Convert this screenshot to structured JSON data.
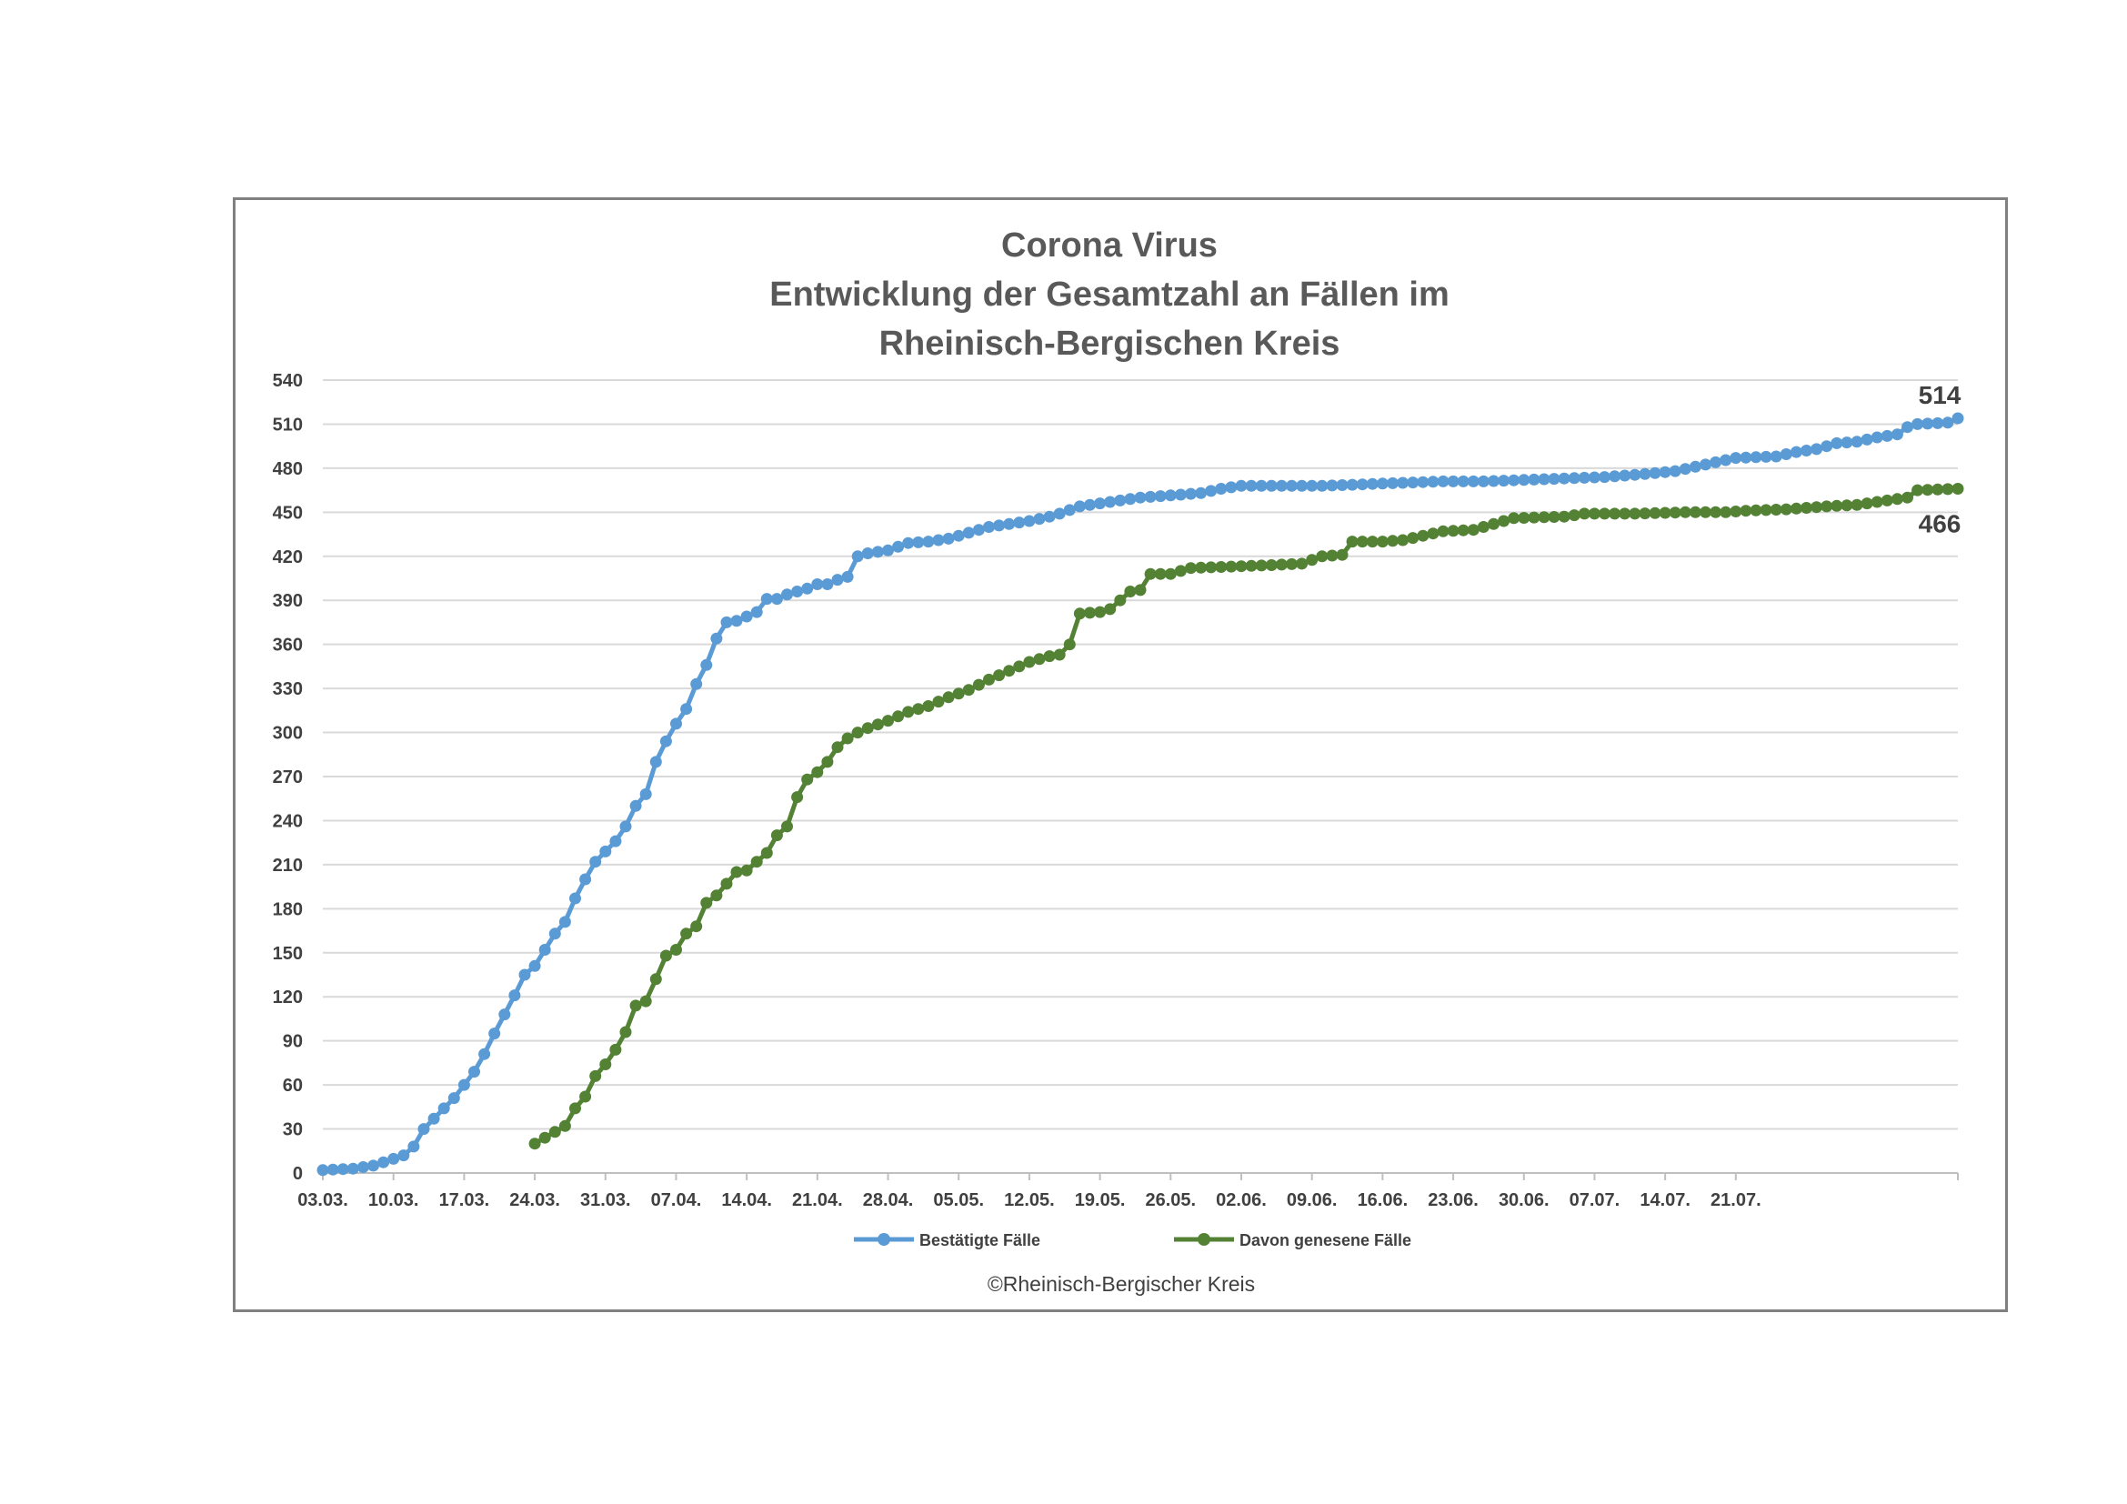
{
  "colors": {
    "series_confirmed": "#5b9bd5",
    "series_recovered": "#548235",
    "gridline": "#d9d9d9",
    "axis": "#bfbfbf",
    "frame": "#808080",
    "title": "#595959",
    "text": "#404040"
  },
  "chart_data": {
    "type": "line",
    "title_lines": [
      "Corona Virus",
      "Entwicklung der Gesamtzahl an Fällen im",
      "Rheinisch-Bergischen Kreis"
    ],
    "xlabel": "",
    "ylabel": "",
    "ylim": [
      0,
      540
    ],
    "y_ticks": [
      "0",
      "30",
      "60",
      "90",
      "120",
      "150",
      "180",
      "210",
      "240",
      "270",
      "300",
      "330",
      "360",
      "390",
      "420",
      "450",
      "480",
      "510",
      "540"
    ],
    "x_start": "03.03.",
    "x_end": "28.07.",
    "x_ticks": [
      "03.03.",
      "10.03.",
      "17.03.",
      "24.03.",
      "31.03.",
      "07.04.",
      "14.04.",
      "21.04.",
      "28.04.",
      "05.05.",
      "12.05.",
      "19.05.",
      "26.05.",
      "02.06.",
      "09.06.",
      "16.06.",
      "23.06.",
      "30.06.",
      "07.07.",
      "14.07.",
      "21.07."
    ],
    "grid": true,
    "legend_position": "bottom",
    "series": [
      {
        "name": "Bestätigte Fälle",
        "start": "03.03.",
        "end_label": "514",
        "keypoints": [
          [
            0,
            2
          ],
          [
            3,
            3
          ],
          [
            5,
            5
          ],
          [
            8,
            12
          ],
          [
            9,
            18
          ],
          [
            10,
            30
          ],
          [
            11,
            37
          ],
          [
            12,
            44
          ],
          [
            13,
            51
          ],
          [
            14,
            60
          ],
          [
            15,
            69
          ],
          [
            16,
            81
          ],
          [
            17,
            95
          ],
          [
            18,
            108
          ],
          [
            19,
            121
          ],
          [
            20,
            135
          ],
          [
            21,
            141
          ],
          [
            22,
            152
          ],
          [
            23,
            163
          ],
          [
            24,
            171
          ],
          [
            25,
            187
          ],
          [
            26,
            200
          ],
          [
            27,
            212
          ],
          [
            28,
            219
          ],
          [
            29,
            226
          ],
          [
            30,
            236
          ],
          [
            31,
            250
          ],
          [
            32,
            258
          ],
          [
            33,
            280
          ],
          [
            34,
            294
          ],
          [
            35,
            306
          ],
          [
            36,
            316
          ],
          [
            37,
            333
          ],
          [
            38,
            346
          ],
          [
            39,
            364
          ],
          [
            40,
            375
          ],
          [
            41,
            376
          ],
          [
            42,
            379
          ],
          [
            43,
            382
          ],
          [
            44,
            391
          ],
          [
            45,
            391
          ],
          [
            46,
            394
          ],
          [
            47,
            396
          ],
          [
            48,
            398
          ],
          [
            49,
            401
          ],
          [
            50,
            401
          ],
          [
            51,
            404
          ],
          [
            52,
            406
          ],
          [
            53,
            420
          ],
          [
            54,
            422
          ],
          [
            56,
            424
          ],
          [
            58,
            429
          ],
          [
            60,
            430
          ],
          [
            62,
            432
          ],
          [
            64,
            436
          ],
          [
            66,
            440
          ],
          [
            68,
            442
          ],
          [
            70,
            444
          ],
          [
            72,
            447
          ],
          [
            73,
            449
          ],
          [
            75,
            454
          ],
          [
            77,
            456
          ],
          [
            79,
            458
          ],
          [
            81,
            460
          ],
          [
            83,
            461
          ],
          [
            85,
            462
          ],
          [
            87,
            463
          ],
          [
            89,
            466
          ],
          [
            91,
            468
          ],
          [
            95,
            468
          ],
          [
            99,
            468
          ],
          [
            103,
            469
          ],
          [
            107,
            470
          ],
          [
            111,
            471
          ],
          [
            115,
            471
          ],
          [
            119,
            472
          ],
          [
            123,
            473
          ],
          [
            127,
            474
          ],
          [
            131,
            476
          ],
          [
            134,
            478
          ],
          [
            136,
            481
          ],
          [
            138,
            484
          ],
          [
            140,
            487
          ],
          [
            144,
            488
          ],
          [
            146,
            491
          ],
          [
            148,
            493
          ],
          [
            150,
            497
          ],
          [
            152,
            498
          ],
          [
            154,
            501
          ],
          [
            156,
            503
          ],
          [
            157,
            508
          ],
          [
            158,
            510
          ],
          [
            161,
            511
          ],
          [
            162,
            514
          ]
        ]
      },
      {
        "name": "Davon genesene Fälle",
        "start": "24.03.",
        "end_label": "466",
        "keypoints": [
          [
            21,
            20
          ],
          [
            22,
            24
          ],
          [
            23,
            28
          ],
          [
            24,
            32
          ],
          [
            25,
            44
          ],
          [
            26,
            52
          ],
          [
            27,
            66
          ],
          [
            28,
            74
          ],
          [
            29,
            84
          ],
          [
            30,
            96
          ],
          [
            31,
            114
          ],
          [
            32,
            117
          ],
          [
            33,
            132
          ],
          [
            34,
            148
          ],
          [
            35,
            152
          ],
          [
            36,
            163
          ],
          [
            37,
            168
          ],
          [
            38,
            184
          ],
          [
            39,
            189
          ],
          [
            40,
            197
          ],
          [
            41,
            205
          ],
          [
            42,
            206
          ],
          [
            43,
            212
          ],
          [
            44,
            218
          ],
          [
            45,
            230
          ],
          [
            46,
            236
          ],
          [
            47,
            256
          ],
          [
            48,
            268
          ],
          [
            49,
            273
          ],
          [
            50,
            280
          ],
          [
            51,
            290
          ],
          [
            52,
            296
          ],
          [
            53,
            300
          ],
          [
            54,
            303
          ],
          [
            56,
            308
          ],
          [
            58,
            314
          ],
          [
            60,
            318
          ],
          [
            62,
            324
          ],
          [
            64,
            329
          ],
          [
            66,
            336
          ],
          [
            68,
            342
          ],
          [
            70,
            348
          ],
          [
            71,
            350
          ],
          [
            72,
            352
          ],
          [
            73,
            353
          ],
          [
            74,
            360
          ],
          [
            75,
            381
          ],
          [
            77,
            382
          ],
          [
            78,
            384
          ],
          [
            79,
            390
          ],
          [
            80,
            396
          ],
          [
            81,
            397
          ],
          [
            82,
            408
          ],
          [
            84,
            408
          ],
          [
            86,
            412
          ],
          [
            90,
            413
          ],
          [
            94,
            414
          ],
          [
            97,
            415
          ],
          [
            99,
            420
          ],
          [
            101,
            421
          ],
          [
            102,
            430
          ],
          [
            105,
            430
          ],
          [
            107,
            431
          ],
          [
            109,
            434
          ],
          [
            111,
            437
          ],
          [
            114,
            438
          ],
          [
            116,
            442
          ],
          [
            118,
            446
          ],
          [
            123,
            447
          ],
          [
            125,
            449
          ],
          [
            130,
            449
          ],
          [
            135,
            450
          ],
          [
            139,
            450
          ],
          [
            141,
            451
          ],
          [
            145,
            452
          ],
          [
            149,
            454
          ],
          [
            152,
            455
          ],
          [
            155,
            458
          ],
          [
            157,
            460
          ],
          [
            158,
            465
          ],
          [
            162,
            466
          ]
        ]
      }
    ],
    "annotations": [
      "514",
      "466"
    ]
  },
  "legend": {
    "items": [
      "Bestätigte Fälle",
      "Davon genesene Fälle"
    ]
  },
  "credit": "©Rheinisch-Bergischer Kreis"
}
